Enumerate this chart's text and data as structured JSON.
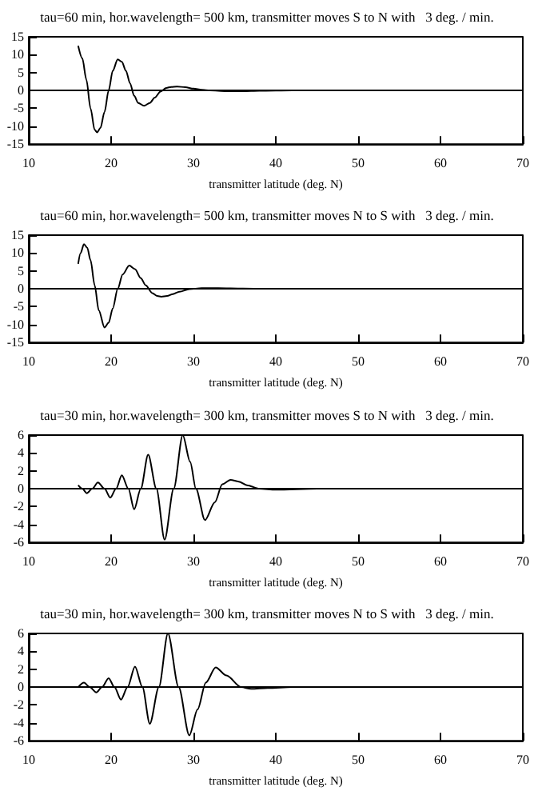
{
  "chart_data": [
    {
      "type": "line",
      "title": "tau=60 min, hor.wavelength= 500 km, transmitter moves S to N with   3 deg. / min.",
      "xlabel": "transmitter latitude (deg. N)",
      "xlim": [
        10,
        70
      ],
      "xticks": [
        10,
        20,
        30,
        40,
        50,
        60,
        70
      ],
      "ylim": [
        -15,
        15
      ],
      "yticks": [
        -15,
        -10,
        -5,
        0,
        5,
        10,
        15
      ],
      "marker": "none",
      "ref_lines": [
        {
          "axis": "y",
          "value": 0
        }
      ],
      "series": [
        {
          "color": "#000000",
          "x": [
            16,
            16.5,
            17,
            17.5,
            18,
            18.3,
            18.7,
            19.2,
            19.7,
            20.2,
            20.8,
            21.3,
            21.8,
            22.3,
            22.8,
            23.3,
            24,
            24.7,
            25.3,
            26,
            26.7,
            27.3,
            28,
            29,
            30,
            31,
            32,
            34,
            36,
            38,
            42,
            50,
            60,
            70
          ],
          "values": [
            12.5,
            9,
            3,
            -5,
            -11,
            -11.7,
            -10.5,
            -6,
            0,
            5.5,
            8.7,
            8,
            5.5,
            2,
            -1.5,
            -3.5,
            -4.3,
            -3.5,
            -2,
            -0.3,
            0.7,
            1,
            1.1,
            0.9,
            0.5,
            0.2,
            0,
            -0.2,
            -0.2,
            -0.1,
            0,
            0,
            0,
            0
          ]
        }
      ]
    },
    {
      "type": "line",
      "title": "tau=60 min, hor.wavelength= 500 km, transmitter moves N to S with   3 deg. / min.",
      "xlabel": "transmitter latitude (deg. N)",
      "xlim": [
        10,
        70
      ],
      "xticks": [
        10,
        20,
        30,
        40,
        50,
        60,
        70
      ],
      "ylim": [
        -15,
        15
      ],
      "yticks": [
        -15,
        -10,
        -5,
        0,
        5,
        10,
        15
      ],
      "marker": "none",
      "ref_lines": [
        {
          "axis": "y",
          "value": 0
        }
      ],
      "series": [
        {
          "color": "#000000",
          "x": [
            16,
            16.3,
            16.7,
            17.1,
            17.5,
            18,
            18.5,
            19.2,
            19.7,
            20.2,
            20.8,
            21.4,
            22.2,
            22.9,
            23.6,
            24.2,
            25,
            25.6,
            26.1,
            26.8,
            27.5,
            28.3,
            29.5,
            31,
            33,
            36,
            40,
            50,
            60,
            70
          ],
          "values": [
            7,
            10,
            12.5,
            11.5,
            8,
            1,
            -6,
            -10.8,
            -9.5,
            -5.5,
            0,
            4,
            6.5,
            5.5,
            3,
            1,
            -1.2,
            -2,
            -2.2,
            -2,
            -1.5,
            -0.8,
            -0.1,
            0.2,
            0.2,
            0.1,
            0,
            0,
            0,
            0
          ]
        }
      ]
    },
    {
      "type": "line",
      "title": "tau=30 min, hor.wavelength= 300 km, transmitter moves S to N with   3 deg. / min.",
      "xlabel": "transmitter latitude (deg. N)",
      "xlim": [
        10,
        70
      ],
      "xticks": [
        10,
        20,
        30,
        40,
        50,
        60,
        70
      ],
      "ylim": [
        -6,
        6
      ],
      "yticks": [
        -6,
        -4,
        -2,
        0,
        2,
        4,
        6
      ],
      "marker": "none",
      "ref_lines": [
        {
          "axis": "y",
          "value": 0
        }
      ],
      "series": [
        {
          "color": "#000000",
          "x": [
            16,
            16.5,
            17.05,
            17.7,
            18.4,
            19.2,
            19.9,
            20.6,
            21.3,
            22.1,
            22.8,
            23.6,
            24.5,
            25.5,
            26.5,
            27.6,
            28.7,
            29.6,
            30.3,
            31.4,
            32.6,
            33.5,
            34.5,
            35.5,
            36.5,
            38,
            40,
            45,
            50,
            60,
            70
          ],
          "values": [
            0.4,
            0,
            -0.5,
            0,
            0.7,
            0,
            -1,
            0,
            1.5,
            0,
            -2.3,
            0,
            3.8,
            0,
            -5.7,
            0,
            6,
            3,
            0,
            -3.5,
            -1.5,
            0.5,
            1,
            0.8,
            0.4,
            0,
            -0.1,
            0,
            0,
            0,
            0
          ]
        }
      ]
    },
    {
      "type": "line",
      "title": "tau=30 min, hor.wavelength= 300 km, transmitter moves N to S with   3 deg. / min.",
      "xlabel": "transmitter latitude (deg. N)",
      "xlim": [
        10,
        70
      ],
      "xticks": [
        10,
        20,
        30,
        40,
        50,
        60,
        70
      ],
      "ylim": [
        -6,
        6
      ],
      "yticks": [
        -6,
        -4,
        -2,
        0,
        2,
        4,
        6
      ],
      "marker": "none",
      "ref_lines": [
        {
          "axis": "y",
          "value": 0
        }
      ],
      "series": [
        {
          "color": "#000000",
          "x": [
            16,
            16.7,
            17.4,
            18.2,
            18.9,
            19.7,
            20.4,
            21.2,
            22,
            22.9,
            23.8,
            24.7,
            25.8,
            26.9,
            28.2,
            29.5,
            30.5,
            31.5,
            32.7,
            34,
            35.8,
            37,
            39,
            42,
            50,
            60,
            70
          ],
          "values": [
            0,
            0.5,
            0,
            -0.6,
            0,
            1,
            0,
            -1.4,
            0,
            2.3,
            0,
            -4.1,
            0,
            6,
            0,
            -5.4,
            -2.5,
            0.5,
            2.2,
            1.3,
            0,
            -0.2,
            -0.1,
            0,
            0,
            0,
            0
          ]
        }
      ]
    }
  ]
}
